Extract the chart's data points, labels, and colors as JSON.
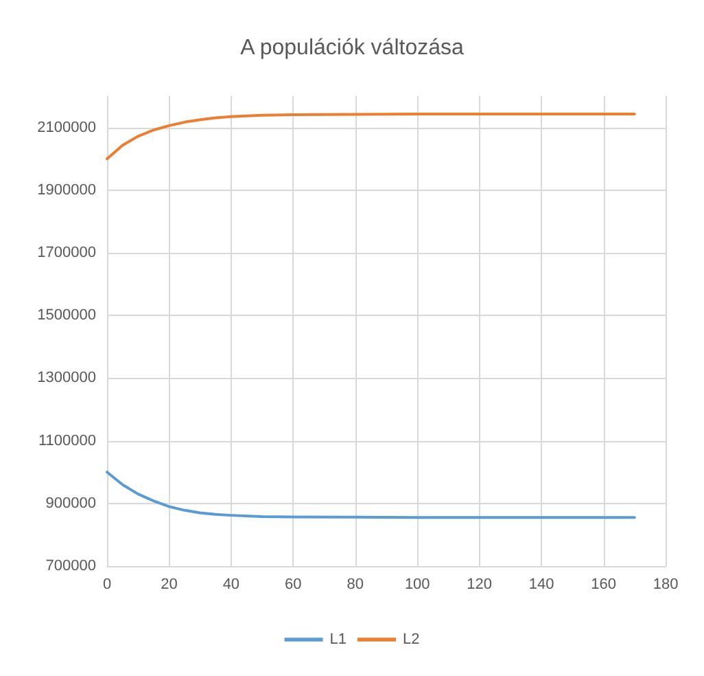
{
  "chart_data": {
    "type": "line",
    "title": "A populációk változása",
    "xlim": [
      0,
      180
    ],
    "xticks": [
      0,
      20,
      40,
      60,
      80,
      100,
      120,
      140,
      160,
      180
    ],
    "ylim": [
      700000,
      2200000
    ],
    "yticks": [
      700000,
      900000,
      1100000,
      1300000,
      1500000,
      1700000,
      1900000,
      2100000
    ],
    "grid": true,
    "legend": "bottom",
    "marker": "none",
    "line_style": "solid",
    "x": [
      0,
      5,
      10,
      15,
      20,
      25,
      30,
      35,
      40,
      50,
      60,
      80,
      100,
      120,
      140,
      170
    ],
    "series": [
      {
        "name": "L1",
        "color": "#5b9bd5",
        "values": [
          1000000,
          960000,
          930000,
          908000,
          890000,
          878000,
          870000,
          865000,
          862000,
          858000,
          857000,
          856000,
          855000,
          855000,
          855000,
          855000
        ]
      },
      {
        "name": "L2",
        "color": "#ed7d31",
        "values": [
          2000000,
          2043000,
          2072000,
          2092000,
          2106000,
          2117000,
          2125000,
          2131000,
          2135000,
          2139000,
          2141000,
          2142000,
          2143000,
          2143000,
          2143000,
          2143000
        ]
      }
    ]
  }
}
